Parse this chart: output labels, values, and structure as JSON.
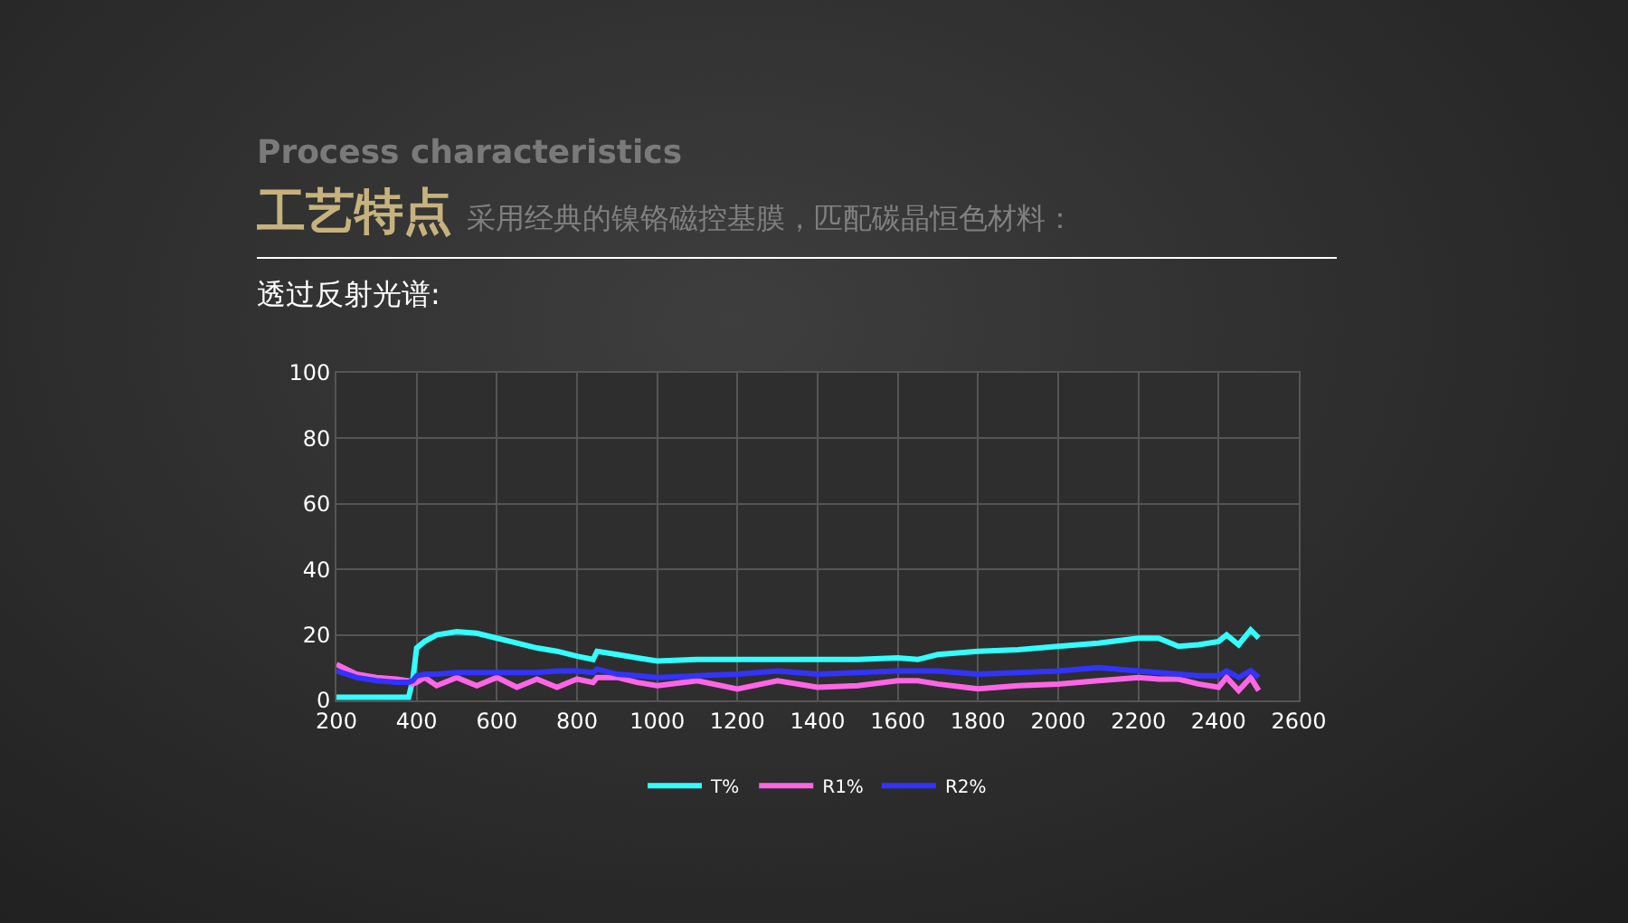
{
  "chart_data": {
    "type": "line",
    "title": "工艺特点",
    "subtitle": "采用经典的镍铬磁控基膜，匹配碳晶恒色材料：",
    "annotations": [
      "Process characteristics",
      "透过反射光谱:"
    ],
    "x": [
      200,
      250,
      300,
      350,
      380,
      390,
      400,
      420,
      450,
      500,
      550,
      600,
      650,
      700,
      750,
      800,
      840,
      850,
      900,
      950,
      1000,
      1100,
      1200,
      1300,
      1400,
      1500,
      1600,
      1650,
      1700,
      1800,
      1900,
      2000,
      2100,
      2200,
      2250,
      2300,
      2350,
      2400,
      2420,
      2450,
      2480,
      2500
    ],
    "series": [
      {
        "name": "T%",
        "color": "#33ffff",
        "values": [
          1,
          1,
          1,
          1,
          1,
          6,
          16,
          18,
          20,
          21,
          20.5,
          19,
          17.5,
          16,
          15,
          13.5,
          12.5,
          15,
          14,
          13,
          12,
          12.5,
          12.5,
          12.5,
          12.5,
          12.5,
          13,
          12.5,
          14,
          15,
          15.5,
          16.5,
          17.5,
          19,
          19,
          16.5,
          17,
          18,
          20,
          17,
          21.5,
          19
        ]
      },
      {
        "name": "R1%",
        "color": "#ff66e6",
        "values": [
          11,
          8,
          7,
          6.5,
          6,
          5,
          5.5,
          7,
          4.5,
          7,
          4.5,
          7,
          4,
          6.5,
          4,
          6.5,
          5.5,
          7,
          7,
          5.5,
          4.5,
          6,
          3.5,
          6,
          4,
          4.5,
          6,
          6,
          5,
          3.5,
          4.5,
          5,
          6,
          7,
          6.5,
          6.5,
          5,
          4,
          7,
          3,
          7,
          3
        ]
      },
      {
        "name": "R2%",
        "color": "#3333ff",
        "values": [
          9,
          7,
          6,
          5.5,
          5.5,
          6,
          7.5,
          8,
          8,
          8.5,
          8.5,
          8.5,
          8.5,
          8.5,
          9,
          9,
          8.5,
          9.5,
          8,
          7.5,
          7,
          7.5,
          8,
          9,
          8,
          8.5,
          9,
          9,
          9,
          8,
          8.5,
          9,
          10,
          9,
          8.5,
          8,
          7.5,
          7.5,
          9,
          7,
          9,
          7
        ]
      }
    ],
    "xlim": [
      200,
      2600
    ],
    "xticks": [
      200,
      400,
      600,
      800,
      1000,
      1200,
      1400,
      1600,
      1800,
      2000,
      2200,
      2400,
      2600
    ],
    "ylim": [
      0,
      100
    ],
    "yticks": [
      0,
      20,
      40,
      60,
      80,
      100
    ],
    "grid": true,
    "legend": "bottom",
    "marker": "none",
    "line_style": "solid"
  }
}
